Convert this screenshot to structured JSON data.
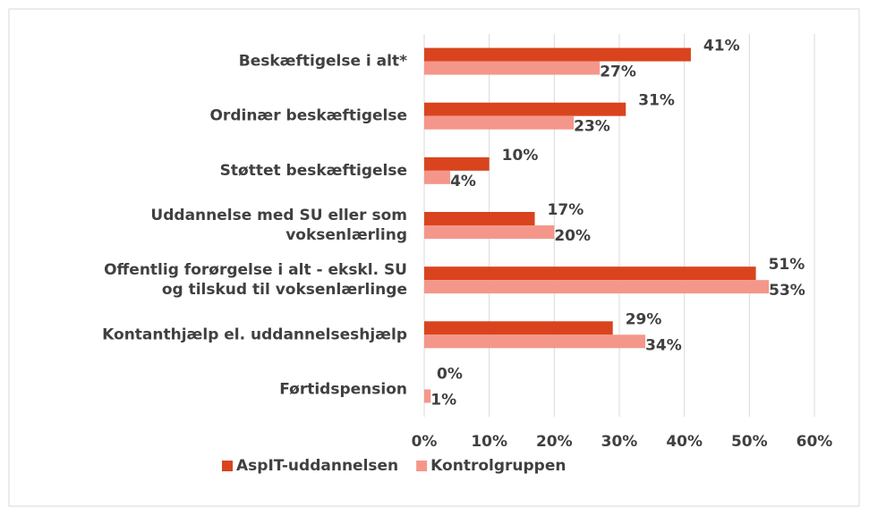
{
  "chart_data": {
    "type": "hbar",
    "categories": [
      "Beskæftigelse i alt*",
      "Ordinær beskæftigelse",
      "Støttet beskæftigelse",
      "Uddannelse med SU eller som\nvoksenlærling",
      "Offentlig forørgelse i alt - ekskl. SU\nog tilskud til voksenlærlinge",
      "Kontanthjælp el. uddannelseshjælp",
      "Førtidspension"
    ],
    "series": [
      {
        "name": "AspIT-uddannelsen",
        "color": "#d9441e",
        "values": [
          41,
          31,
          10,
          17,
          51,
          29,
          0
        ],
        "value_labels": [
          "41%",
          "31%",
          "10%",
          "17%",
          "51%",
          "29%",
          "0%"
        ]
      },
      {
        "name": "Kontrolgruppen",
        "color": "#f4978a",
        "values": [
          27,
          23,
          4,
          20,
          53,
          34,
          1
        ],
        "value_labels": [
          "27%",
          "23%",
          "4%",
          "20%",
          "53%",
          "34%",
          "1%"
        ]
      }
    ],
    "xlim": [
      0,
      60
    ],
    "xticks": [
      {
        "value": 0,
        "label": "0%"
      },
      {
        "value": 10,
        "label": "10%"
      },
      {
        "value": 20,
        "label": "20%"
      },
      {
        "value": 30,
        "label": "30%"
      },
      {
        "value": 40,
        "label": "40%"
      },
      {
        "value": 50,
        "label": "50%"
      },
      {
        "value": 60,
        "label": "60%"
      }
    ],
    "grid": true,
    "legend": "bottom"
  }
}
